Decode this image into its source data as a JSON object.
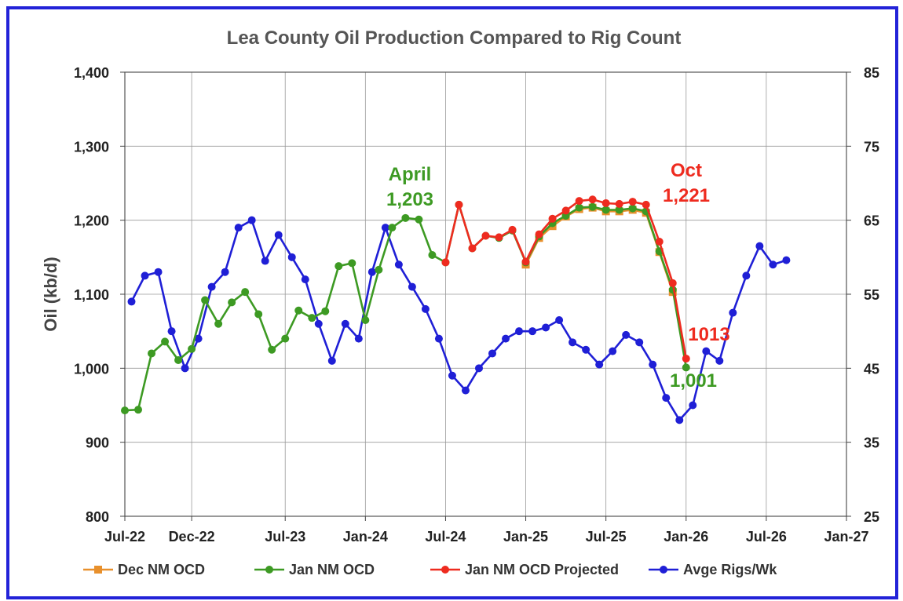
{
  "chart_data": {
    "type": "line",
    "title": "Lea County Oil Production Compared to Rig Count",
    "ylabel": "Oil (kb/d)",
    "y2label": "",
    "ylim": [
      800,
      1400
    ],
    "y2lim": [
      25,
      85
    ],
    "yticks": [
      "800",
      "900",
      "1,000",
      "1,100",
      "1,200",
      "1,300",
      "1,400"
    ],
    "y2ticks": [
      "25",
      "35",
      "45",
      "55",
      "65",
      "75",
      "85"
    ],
    "xlim_months": [
      0,
      54
    ],
    "xticks": [
      {
        "m": 0,
        "label": "Jul-22"
      },
      {
        "m": 5,
        "label": "Dec-22"
      },
      {
        "m": 12,
        "label": "Jul-23"
      },
      {
        "m": 18,
        "label": "Jan-24"
      },
      {
        "m": 24,
        "label": "Jul-24"
      },
      {
        "m": 30,
        "label": "Jan-25"
      },
      {
        "m": 36,
        "label": "Jul-25"
      },
      {
        "m": 42,
        "label": "Jan-26"
      },
      {
        "m": 48,
        "label": "Jul-26"
      },
      {
        "m": 54,
        "label": "Jan-27"
      }
    ],
    "legend_position": "bottom",
    "series": [
      {
        "name": "Dec NM OCD",
        "axis": "left",
        "color": "#e8902c",
        "marker": "square",
        "start_month": 30,
        "values": [
          1140,
          1176,
          1192,
          1205,
          1215,
          1217,
          1212,
          1212,
          1214,
          1210,
          1157,
          1103
        ]
      },
      {
        "name": "Jan NM OCD",
        "axis": "left",
        "color": "#3d9a23",
        "marker": "circle",
        "start_month": 0,
        "values": [
          943,
          944,
          1020,
          1036,
          1011,
          1026,
          1092,
          1060,
          1089,
          1103,
          1073,
          1025,
          1040,
          1078,
          1068,
          1077,
          1138,
          1142,
          1065,
          1133,
          1190,
          1203,
          1201,
          1153,
          1143,
          1221,
          1162,
          1179,
          1176,
          1186,
          1143,
          1178,
          1196,
          1206,
          1217,
          1218,
          1214,
          1214,
          1216,
          1212,
          1158,
          1106,
          1001
        ]
      },
      {
        "name": "Jan NM OCD Projected",
        "axis": "left",
        "color": "#ee2b1f",
        "marker": "circle",
        "start_month": 24,
        "values": [
          1143,
          1221,
          1162,
          1179,
          1177,
          1187,
          1144,
          1181,
          1202,
          1213,
          1226,
          1228,
          1223,
          1222,
          1225,
          1221,
          1171,
          1115,
          1013
        ]
      },
      {
        "name": "Avge Rigs/Wk",
        "axis": "right",
        "color": "#1f1fd6",
        "marker": "circle",
        "start_month": 0.5,
        "values": [
          54,
          57.5,
          58,
          50,
          45,
          49,
          56,
          58,
          64,
          65,
          59.5,
          63,
          60,
          57,
          51,
          46,
          51,
          49,
          58,
          64,
          59,
          56,
          53,
          49,
          44,
          42,
          45,
          47,
          49,
          50,
          50,
          50.5,
          51.5,
          48.5,
          47.5,
          45.5,
          47.3,
          49.5,
          48.5,
          45.5,
          41,
          38,
          40,
          47.3,
          46,
          52.5,
          57.5,
          61.5,
          59,
          59.6
        ]
      }
    ],
    "annotations": [
      {
        "lines": [
          "April",
          "1,203"
        ],
        "color": "#3d9a23"
      },
      {
        "lines": [
          "Oct",
          "1,221"
        ],
        "color": "#ee2b1f"
      },
      {
        "lines": [
          "1013"
        ],
        "color": "#ee2b1f"
      },
      {
        "lines": [
          "1,001"
        ],
        "color": "#3d9a23"
      }
    ]
  }
}
